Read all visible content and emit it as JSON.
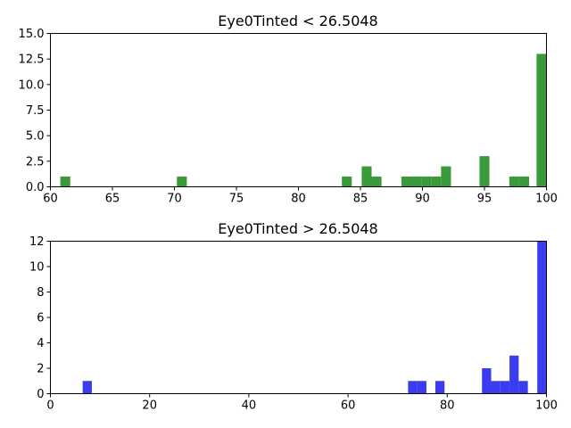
{
  "chart_data": [
    {
      "type": "bar",
      "title": "Eye0Tinted < 26.5048",
      "xlabel": "",
      "ylabel": "",
      "color": "#3a9a3a",
      "xlim": [
        60,
        100
      ],
      "ylim": [
        0,
        15
      ],
      "x_ticks": [
        60,
        65,
        70,
        75,
        80,
        85,
        90,
        95,
        100
      ],
      "x_tick_labels": [
        "60",
        "65",
        "70",
        "75",
        "80",
        "85",
        "90",
        "95",
        "100"
      ],
      "y_ticks": [
        0,
        2.5,
        5,
        7.5,
        10,
        12.5,
        15
      ],
      "y_tick_labels": [
        "0.0",
        "2.5",
        "5.0",
        "7.5",
        "10.0",
        "12.5",
        "15.0"
      ],
      "bin_width": 0.8,
      "bins": [
        {
          "x": 60.8,
          "value": 1
        },
        {
          "x": 70.2,
          "value": 1
        },
        {
          "x": 83.5,
          "value": 1
        },
        {
          "x": 85.1,
          "value": 2
        },
        {
          "x": 85.9,
          "value": 1
        },
        {
          "x": 88.3,
          "value": 1
        },
        {
          "x": 89.1,
          "value": 1
        },
        {
          "x": 89.9,
          "value": 1
        },
        {
          "x": 90.7,
          "value": 1
        },
        {
          "x": 91.5,
          "value": 2
        },
        {
          "x": 94.6,
          "value": 3
        },
        {
          "x": 97.0,
          "value": 1
        },
        {
          "x": 97.8,
          "value": 1
        },
        {
          "x": 99.2,
          "value": 13
        }
      ]
    },
    {
      "type": "bar",
      "title": "Eye0Tinted > 26.5048",
      "xlabel": "",
      "ylabel": "",
      "color": "#3b3bf0",
      "xlim": [
        0,
        100
      ],
      "ylim": [
        0,
        12
      ],
      "x_ticks": [
        0,
        20,
        40,
        60,
        80,
        100
      ],
      "x_tick_labels": [
        "0",
        "20",
        "40",
        "60",
        "80",
        "100"
      ],
      "y_ticks": [
        0,
        2,
        4,
        6,
        8,
        10,
        12
      ],
      "y_tick_labels": [
        "0",
        "2",
        "4",
        "6",
        "8",
        "10",
        "12"
      ],
      "bin_width": 1.85,
      "bins": [
        {
          "x": 6.5,
          "value": 1
        },
        {
          "x": 72.1,
          "value": 1
        },
        {
          "x": 73.95,
          "value": 1
        },
        {
          "x": 77.6,
          "value": 1
        },
        {
          "x": 87.0,
          "value": 2
        },
        {
          "x": 88.85,
          "value": 1
        },
        {
          "x": 90.7,
          "value": 1
        },
        {
          "x": 92.55,
          "value": 3
        },
        {
          "x": 94.4,
          "value": 1
        },
        {
          "x": 98.15,
          "value": 12
        }
      ]
    }
  ]
}
